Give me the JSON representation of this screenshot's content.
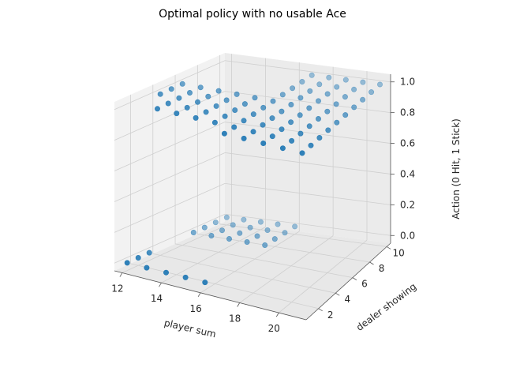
{
  "chart_data": {
    "type": "scatter",
    "projection": "3d",
    "title": "Optimal policy with no usable Ace",
    "xlabel": "player sum",
    "ylabel": "dealer showing",
    "zlabel": "Action (0 Hit, 1 Stick)",
    "xlim": [
      11.6,
      21.4
    ],
    "ylim": [
      0.55,
      10.45
    ],
    "zlim": [
      -0.05,
      1.05
    ],
    "xticks": [
      12,
      14,
      16,
      18,
      20
    ],
    "yticks": [
      2,
      4,
      6,
      8,
      10
    ],
    "zticks": [
      "0.0",
      "0.2",
      "0.4",
      "0.6",
      "0.8",
      "1.0"
    ],
    "grid": true,
    "color": "#1f77b4",
    "policy_grid": {
      "player_sum": [
        12,
        13,
        14,
        15,
        16,
        17,
        18,
        19,
        20,
        21
      ],
      "dealer_showing": [
        1,
        2,
        3,
        4,
        5,
        6,
        7,
        8,
        9,
        10
      ],
      "action_rows_by_player_sum": [
        [
          0,
          0,
          0,
          1,
          1,
          1,
          0,
          0,
          0,
          0
        ],
        [
          0,
          1,
          1,
          1,
          1,
          1,
          0,
          0,
          0,
          0
        ],
        [
          0,
          1,
          1,
          1,
          1,
          1,
          0,
          0,
          0,
          0
        ],
        [
          0,
          1,
          1,
          1,
          1,
          1,
          0,
          0,
          0,
          0
        ],
        [
          0,
          1,
          1,
          1,
          1,
          1,
          0,
          0,
          0,
          0
        ],
        [
          1,
          1,
          1,
          1,
          1,
          1,
          1,
          1,
          1,
          1
        ],
        [
          1,
          1,
          1,
          1,
          1,
          1,
          1,
          1,
          1,
          1
        ],
        [
          1,
          1,
          1,
          1,
          1,
          1,
          1,
          1,
          1,
          1
        ],
        [
          1,
          1,
          1,
          1,
          1,
          1,
          1,
          1,
          1,
          1
        ],
        [
          1,
          1,
          1,
          1,
          1,
          1,
          1,
          1,
          1,
          1
        ]
      ]
    }
  }
}
